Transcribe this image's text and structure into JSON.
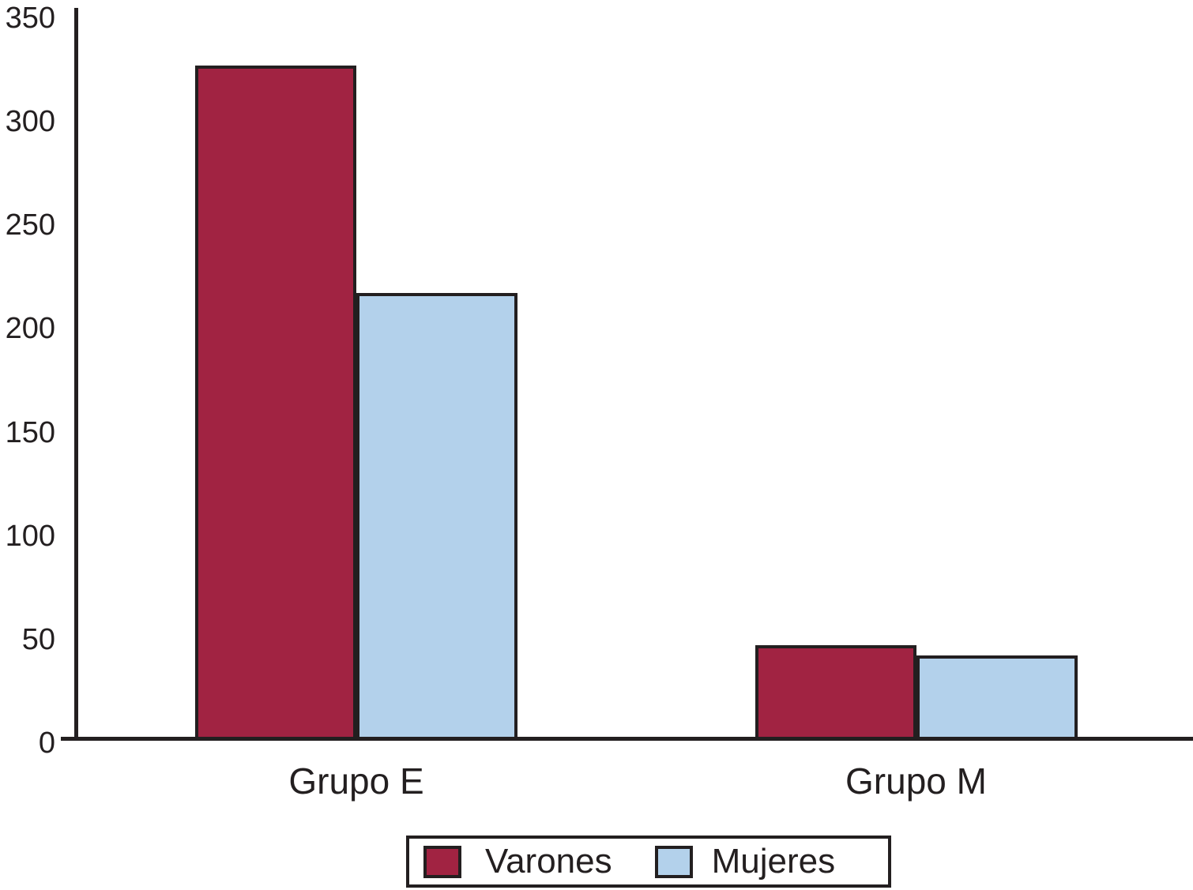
{
  "chart_data": {
    "type": "bar",
    "title": "",
    "xlabel": "",
    "ylabel": "",
    "categories": [
      "Grupo E",
      "Grupo M"
    ],
    "series": [
      {
        "name": "Varones",
        "color": "#A12342",
        "values": [
          325,
          45
        ]
      },
      {
        "name": "Mujeres",
        "color": "#B3D1EB",
        "values": [
          215,
          40
        ]
      }
    ],
    "ylim": [
      0,
      350
    ],
    "yticks": [
      0,
      50,
      100,
      150,
      200,
      250,
      300,
      350
    ],
    "grid": false,
    "legend_position": "bottom",
    "axis_color": "#231F20",
    "text_color": "#231F20",
    "background_color": "#FFFFFF"
  }
}
